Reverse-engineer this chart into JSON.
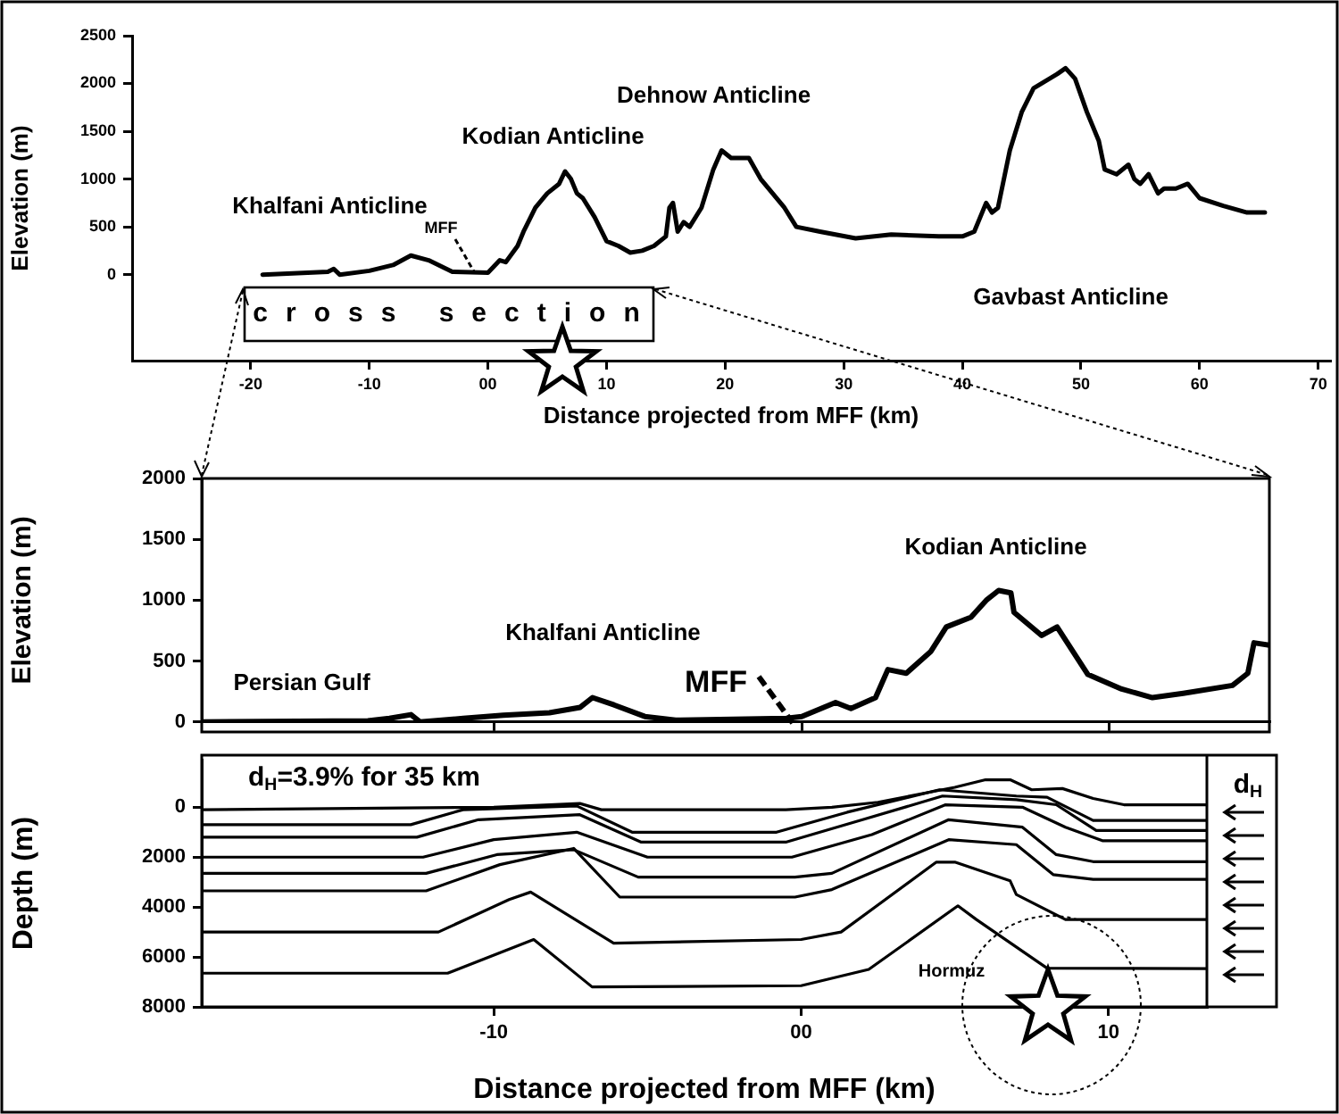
{
  "chart_data": [
    {
      "type": "line",
      "xlabel": "Distance projected from MFF (km)",
      "ylabel": "Elevation (m)",
      "xlim": [
        -30,
        71
      ],
      "ylim": [
        -900,
        2500
      ],
      "xticks": [
        -20,
        -10,
        {
          "value": 0,
          "label": "00"
        },
        10,
        20,
        30,
        40,
        50,
        60,
        70
      ],
      "yticks": [
        0,
        500,
        1000,
        1500,
        2000,
        2500
      ],
      "grid": false,
      "legend": false,
      "marker": "none",
      "annotations": [
        "Khalfani Anticline",
        "MFF",
        "Kodian Anticline",
        "Dehnow Anticline",
        "Gavbast Anticline",
        "cross section"
      ],
      "x": [
        -19,
        -13.5,
        -13,
        -12.5,
        -10,
        -8,
        -6.5,
        -5,
        -3,
        0,
        1,
        1.5,
        2.5,
        3,
        4,
        5,
        6,
        6.5,
        7,
        7.5,
        8,
        9,
        10,
        11,
        12,
        13,
        14,
        15,
        15.3,
        15.6,
        16,
        16.5,
        17,
        18,
        19,
        19.7,
        20.5,
        22,
        23,
        25,
        26,
        28,
        31,
        34,
        38,
        40,
        41,
        42,
        42.5,
        43,
        44,
        45,
        46,
        48,
        48.7,
        49.5,
        50.5,
        51.5,
        52,
        53,
        54,
        54.5,
        55,
        55.7,
        56.5,
        57,
        58,
        59,
        60,
        62,
        64,
        65.5
      ],
      "series": [
        {
          "color": "#000000",
          "values": [
            0,
            30,
            60,
            0,
            40,
            100,
            200,
            150,
            30,
            20,
            150,
            130,
            300,
            450,
            700,
            850,
            950,
            1080,
            1000,
            850,
            800,
            600,
            350,
            300,
            230,
            250,
            300,
            400,
            700,
            750,
            450,
            550,
            500,
            700,
            1100,
            1300,
            1220,
            1220,
            1000,
            700,
            500,
            450,
            380,
            420,
            400,
            400,
            450,
            750,
            650,
            700,
            1300,
            1700,
            1950,
            2100,
            2160,
            2050,
            1700,
            1400,
            1100,
            1050,
            1150,
            1000,
            950,
            1050,
            850,
            900,
            900,
            950,
            800,
            720,
            650,
            650
          ]
        }
      ]
    },
    {
      "type": "line",
      "ylabel": "Elevation (m)",
      "xlim": [
        -19.5,
        15.2
      ],
      "ylim": [
        0,
        2000
      ],
      "xticks": [
        -10,
        0,
        10
      ],
      "yticks": [
        0,
        500,
        1000,
        1500,
        2000
      ],
      "tick_labels": "y",
      "grid": false,
      "legend": false,
      "marker": "none",
      "annotations": [
        "Persian Gulf",
        "Khalfani Anticline",
        "MFF",
        "Kodian Anticline"
      ],
      "x": [
        -19.5,
        -14.1,
        -13.4,
        -12.7,
        -12.4,
        -11,
        -9.7,
        -8.2,
        -7.2,
        -6.8,
        -6.1,
        -5.1,
        -4.1,
        -0.5,
        0,
        1.1,
        1.6,
        2.4,
        2.8,
        3.4,
        4.2,
        4.7,
        5.5,
        6,
        6.4,
        6.8,
        6.9,
        7.8,
        8.3,
        9.3,
        10.4,
        11.4,
        12.4,
        14,
        14.5,
        14.7,
        15.2
      ],
      "series": [
        {
          "color": "#000000",
          "values": [
            0,
            10,
            30,
            60,
            0,
            30,
            55,
            75,
            120,
            200,
            140,
            45,
            15,
            30,
            45,
            160,
            110,
            200,
            430,
            400,
            580,
            780,
            860,
            1000,
            1080,
            1060,
            900,
            710,
            780,
            390,
            270,
            200,
            235,
            300,
            400,
            650,
            630
          ]
        }
      ]
    },
    {
      "type": "line",
      "xlabel": "Distance projected from MFF (km)",
      "ylabel": "Depth (m)",
      "xlim": [
        -19.5,
        13.2
      ],
      "ylim": [
        8000,
        -1900
      ],
      "xticks": [
        -10,
        {
          "value": 0,
          "label": "00"
        },
        10
      ],
      "yticks": [
        0,
        2000,
        4000,
        6000,
        8000
      ],
      "grid": false,
      "legend": false,
      "marker": "none",
      "annotations": [
        "d$_{H}$=3.9% for 35 km",
        "Hormuz",
        "d$_{H}$"
      ],
      "series": [
        {
          "color": "#000000",
          "x": [
            -19.5,
            -10,
            -7.2,
            -6.5,
            -0.5,
            1,
            2.5,
            5,
            6,
            6.8,
            7.5,
            8.5,
            9.5,
            10.5,
            13.2
          ],
          "values": [
            100,
            0,
            -150,
            100,
            100,
            0,
            -200,
            -800,
            -1100,
            -1100,
            -700,
            -750,
            -350,
            -100,
            -100
          ]
        },
        {
          "color": "#000000",
          "x": [
            -19.5,
            -12.7,
            -11,
            -7.3,
            -5.5,
            -0.8,
            1.5,
            4.5,
            7,
            8,
            9.5,
            13.2
          ],
          "values": [
            700,
            700,
            100,
            -50,
            1000,
            1000,
            200,
            -700,
            -450,
            -400,
            530,
            530
          ]
        },
        {
          "color": "#000000",
          "x": [
            -19.5,
            -12.5,
            -10.5,
            -7.2,
            -5.2,
            -0.5,
            2,
            4.6,
            7,
            8.3,
            9.6,
            13.2
          ],
          "values": [
            1200,
            1200,
            500,
            300,
            1400,
            1400,
            500,
            -450,
            -300,
            -100,
            930,
            930
          ]
        },
        {
          "color": "#000000",
          "x": [
            -19.5,
            -12.3,
            -10,
            -7.3,
            -5,
            -0.3,
            2.3,
            4.7,
            7.2,
            8.6,
            9.8,
            13.2
          ],
          "values": [
            2000,
            2000,
            1300,
            1000,
            2000,
            2000,
            1100,
            -100,
            0,
            800,
            1340,
            1340
          ]
        },
        {
          "color": "#000000",
          "x": [
            -19.5,
            -12.2,
            -9.9,
            -7.4,
            -5.3,
            -0.2,
            1,
            4.8,
            7.2,
            8.3,
            9.5,
            13.2
          ],
          "values": [
            2650,
            2650,
            1900,
            1700,
            2800,
            2800,
            2650,
            500,
            800,
            1900,
            2180,
            2180
          ]
        },
        {
          "color": "#000000",
          "x": [
            -19.5,
            -12.2,
            -9.8,
            -7.4,
            -5.9,
            -0.2,
            1,
            4.8,
            7,
            8.2,
            9.5,
            13.2
          ],
          "values": [
            3350,
            3350,
            2300,
            1650,
            3600,
            3600,
            3300,
            1300,
            1500,
            2700,
            2890,
            2890
          ]
        },
        {
          "color": "#000000",
          "x": [
            -19.5,
            -11.8,
            -9.5,
            -8.8,
            -6.1,
            0,
            1.3,
            4.4,
            5,
            6.8,
            7,
            8.6,
            13.2
          ],
          "values": [
            5000,
            5000,
            3700,
            3400,
            5450,
            5300,
            5000,
            2200,
            2200,
            2950,
            3500,
            4500,
            4500
          ]
        },
        {
          "color": "#000000",
          "x": [
            -19.5,
            -11.5,
            -8.7,
            -6.8,
            0,
            2.2,
            5.1,
            5.7,
            8,
            13.2
          ],
          "values": [
            6650,
            6650,
            5300,
            7200,
            7150,
            6500,
            3950,
            4500,
            6450,
            6470
          ]
        }
      ]
    }
  ]
}
